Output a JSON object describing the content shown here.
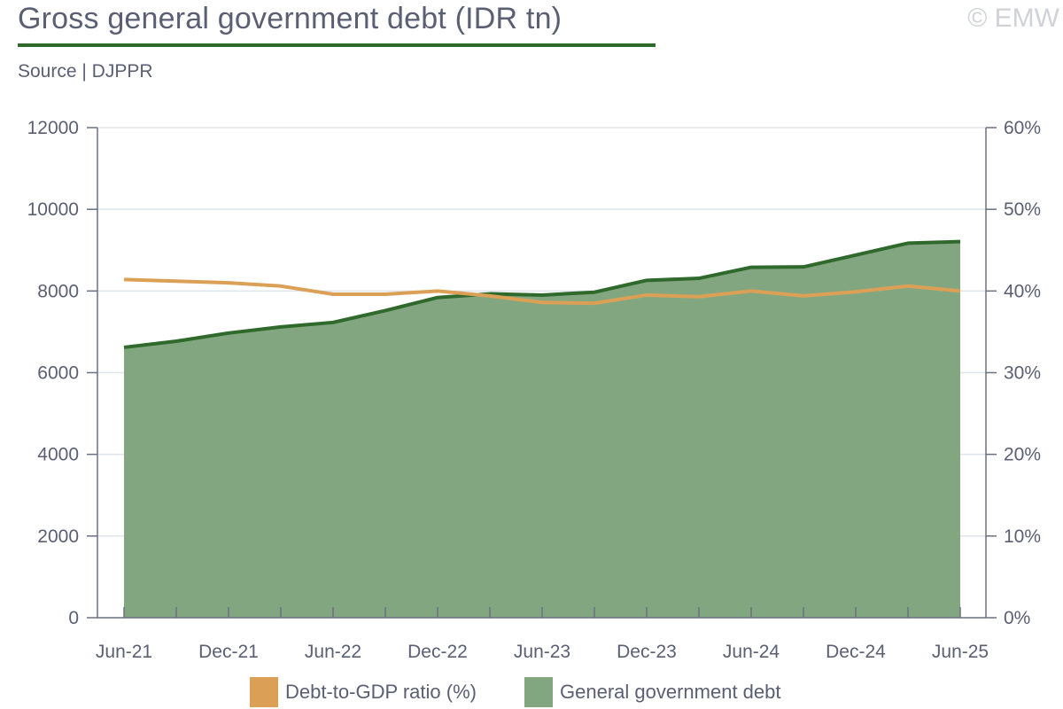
{
  "header": {
    "title": "Gross general government debt (IDR tn)",
    "copyright": "© EMW",
    "source": "Source | DJPPR"
  },
  "colors": {
    "title_rule": "#2e6b2a",
    "debt_line": "#2f6a2c",
    "debt_fill": "#82a780",
    "ratio_line": "#dba055",
    "axis": "#6b7080",
    "grid": "#dfe3ea"
  },
  "legend": {
    "items": [
      {
        "label": "Debt-to-GDP ratio (%)",
        "color": "#dba055"
      },
      {
        "label": "General government debt",
        "color": "#82a780"
      }
    ]
  },
  "chart_data": {
    "type": "area",
    "x": [
      "Jun-21",
      "Sep-21",
      "Dec-21",
      "Mar-22",
      "Jun-22",
      "Sep-22",
      "Dec-22",
      "Mar-23",
      "Jun-23",
      "Sep-23",
      "Dec-23",
      "Mar-24",
      "Jun-24",
      "Sep-24",
      "Dec-24",
      "Mar-25",
      "Jun-25"
    ],
    "x_tick_labels": [
      "Jun-21",
      "Dec-21",
      "Jun-22",
      "Dec-22",
      "Jun-23",
      "Dec-23",
      "Jun-24",
      "Dec-24",
      "Jun-25"
    ],
    "y_left": {
      "min": 0,
      "max": 12000,
      "ticks": [
        "0",
        "2000",
        "4000",
        "6000",
        "8000",
        "10000",
        "12000"
      ]
    },
    "y_right": {
      "min": 0,
      "max": 60,
      "ticks": [
        "0%",
        "10%",
        "20%",
        "30%",
        "40%",
        "50%",
        "60%"
      ]
    },
    "grid": true,
    "legend_position": "bottom",
    "series": [
      {
        "name": "General government debt",
        "type": "area",
        "axis": "left",
        "values": [
          6620,
          6770,
          6970,
          7120,
          7230,
          7520,
          7840,
          7930,
          7900,
          7970,
          8260,
          8310,
          8580,
          8590,
          8880,
          9170,
          9210
        ]
      },
      {
        "name": "Debt-to-GDP ratio (%)",
        "type": "line",
        "axis": "right",
        "values": [
          41.4,
          41.2,
          41.0,
          40.6,
          39.6,
          39.6,
          40.0,
          39.4,
          38.6,
          38.5,
          39.5,
          39.3,
          40.0,
          39.4,
          39.9,
          40.6,
          40.0
        ]
      }
    ]
  }
}
